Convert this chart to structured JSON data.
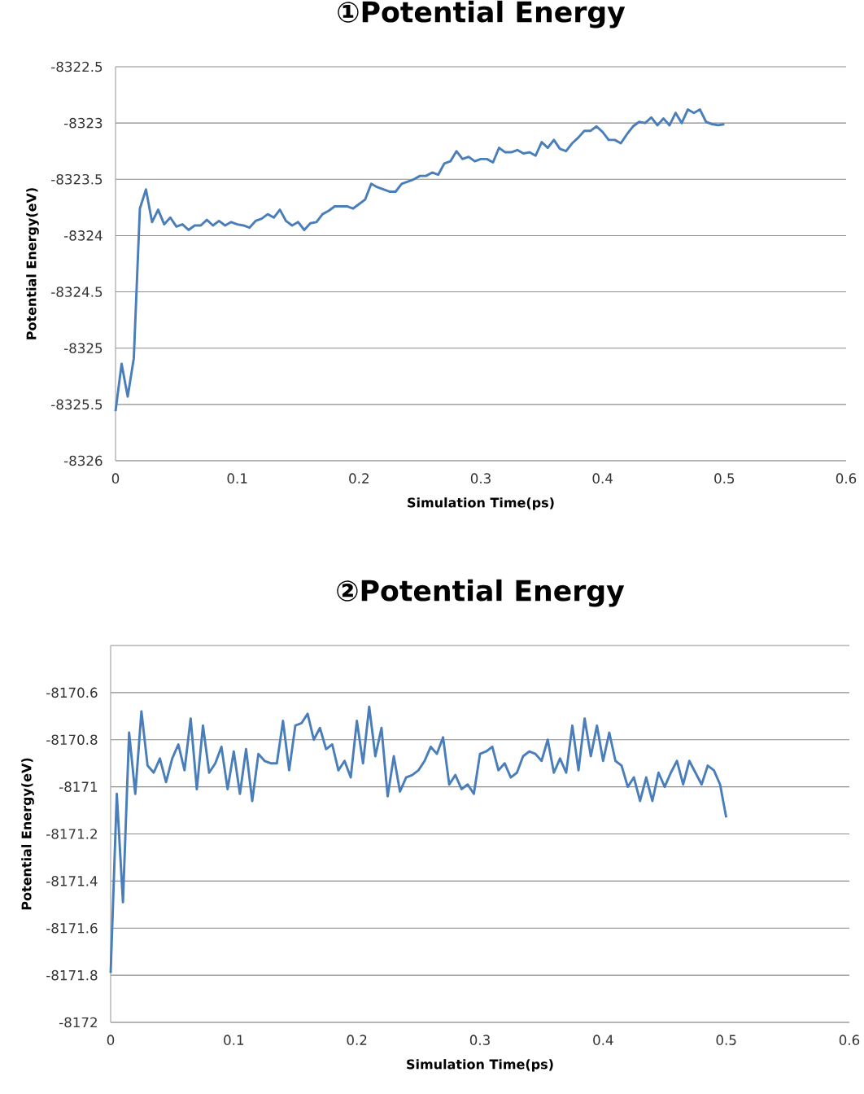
{
  "chart_data": [
    {
      "type": "line",
      "title": "①Potential Energy",
      "xlabel": "Simulation Time(ps)",
      "ylabel": "Potential Energy(eV)",
      "color": "#4a7ebb",
      "grid": "y",
      "xlim": [
        0,
        0.6
      ],
      "ylim": [
        -8326,
        -8322.5
      ],
      "xticks": [
        0,
        0.1,
        0.2,
        0.3,
        0.4,
        0.5,
        0.6
      ],
      "yticks": [
        -8326,
        -8325.5,
        -8325,
        -8324.5,
        -8324,
        -8323.5,
        -8323,
        -8322.5
      ],
      "x": [
        0,
        0.005,
        0.01,
        0.015,
        0.02,
        0.025,
        0.03,
        0.035,
        0.04,
        0.045,
        0.05,
        0.055,
        0.06,
        0.065,
        0.07,
        0.075,
        0.08,
        0.085,
        0.09,
        0.095,
        0.1,
        0.105,
        0.11,
        0.115,
        0.12,
        0.125,
        0.13,
        0.135,
        0.14,
        0.145,
        0.15,
        0.155,
        0.16,
        0.165,
        0.17,
        0.175,
        0.18,
        0.185,
        0.19,
        0.195,
        0.2,
        0.205,
        0.21,
        0.215,
        0.22,
        0.225,
        0.23,
        0.235,
        0.24,
        0.245,
        0.25,
        0.255,
        0.26,
        0.265,
        0.27,
        0.275,
        0.28,
        0.285,
        0.29,
        0.295,
        0.3,
        0.305,
        0.31,
        0.315,
        0.32,
        0.325,
        0.33,
        0.335,
        0.34,
        0.345,
        0.35,
        0.355,
        0.36,
        0.365,
        0.37,
        0.375,
        0.38,
        0.385,
        0.39,
        0.395,
        0.4,
        0.405,
        0.41,
        0.415,
        0.42,
        0.425,
        0.43,
        0.435,
        0.44,
        0.445,
        0.45,
        0.455,
        0.46,
        0.465,
        0.47,
        0.475,
        0.48,
        0.485,
        0.49,
        0.495,
        0.5
      ],
      "values": [
        -8325.56,
        -8325.14,
        -8325.43,
        -8325.09,
        -8323.76,
        -8323.59,
        -8323.88,
        -8323.77,
        -8323.9,
        -8323.84,
        -8323.92,
        -8323.9,
        -8323.95,
        -8323.91,
        -8323.91,
        -8323.86,
        -8323.91,
        -8323.87,
        -8323.91,
        -8323.88,
        -8323.9,
        -8323.91,
        -8323.93,
        -8323.87,
        -8323.85,
        -8323.81,
        -8323.84,
        -8323.77,
        -8323.87,
        -8323.91,
        -8323.88,
        -8323.95,
        -8323.89,
        -8323.88,
        -8323.81,
        -8323.78,
        -8323.74,
        -8323.74,
        -8323.74,
        -8323.76,
        -8323.72,
        -8323.68,
        -8323.54,
        -8323.57,
        -8323.59,
        -8323.61,
        -8323.61,
        -8323.54,
        -8323.52,
        -8323.5,
        -8323.47,
        -8323.47,
        -8323.44,
        -8323.46,
        -8323.36,
        -8323.34,
        -8323.25,
        -8323.32,
        -8323.3,
        -8323.34,
        -8323.32,
        -8323.32,
        -8323.35,
        -8323.22,
        -8323.26,
        -8323.26,
        -8323.24,
        -8323.27,
        -8323.26,
        -8323.29,
        -8323.17,
        -8323.22,
        -8323.15,
        -8323.23,
        -8323.25,
        -8323.18,
        -8323.13,
        -8323.07,
        -8323.07,
        -8323.03,
        -8323.08,
        -8323.15,
        -8323.15,
        -8323.18,
        -8323.1,
        -8323.03,
        -8322.99,
        -8323.0,
        -8322.95,
        -8323.02,
        -8322.96,
        -8323.02,
        -8322.91,
        -8323.0,
        -8322.88,
        -8322.91,
        -8322.88,
        -8322.99,
        -8323.01,
        -8323.02,
        -8323.01
      ]
    },
    {
      "type": "line",
      "title": "②Potential Energy",
      "xlabel": "Simulation Time(ps)",
      "ylabel": "Potential Energy(eV)",
      "color": "#4a7ebb",
      "grid": "y",
      "xlim": [
        0,
        0.6
      ],
      "ylim": [
        -8172,
        -8170.4
      ],
      "xticks": [
        0,
        0.1,
        0.2,
        0.3,
        0.4,
        0.5,
        0.6
      ],
      "yticks": [
        -8172,
        -8171.8,
        -8171.6,
        -8171.4,
        -8171.2,
        -8171,
        -8170.8,
        -8170.6,
        {
          "value": -8170.4,
          "label": null
        }
      ],
      "x": [
        0,
        0.005,
        0.01,
        0.015,
        0.02,
        0.025,
        0.03,
        0.035,
        0.04,
        0.045,
        0.05,
        0.055,
        0.06,
        0.065,
        0.07,
        0.075,
        0.08,
        0.085,
        0.09,
        0.095,
        0.1,
        0.105,
        0.11,
        0.115,
        0.12,
        0.125,
        0.13,
        0.135,
        0.14,
        0.145,
        0.15,
        0.155,
        0.16,
        0.165,
        0.17,
        0.175,
        0.18,
        0.185,
        0.19,
        0.195,
        0.2,
        0.205,
        0.21,
        0.215,
        0.22,
        0.225,
        0.23,
        0.235,
        0.24,
        0.245,
        0.25,
        0.255,
        0.26,
        0.265,
        0.27,
        0.275,
        0.28,
        0.285,
        0.29,
        0.295,
        0.3,
        0.305,
        0.31,
        0.315,
        0.32,
        0.325,
        0.33,
        0.335,
        0.34,
        0.345,
        0.35,
        0.355,
        0.36,
        0.365,
        0.37,
        0.375,
        0.38,
        0.385,
        0.39,
        0.395,
        0.4,
        0.405,
        0.41,
        0.415,
        0.42,
        0.425,
        0.43,
        0.435,
        0.44,
        0.445,
        0.45,
        0.455,
        0.46,
        0.465,
        0.47,
        0.475,
        0.48,
        0.485,
        0.49,
        0.495,
        0.5
      ],
      "values": [
        -8171.79,
        -8171.03,
        -8171.49,
        -8170.77,
        -8171.03,
        -8170.68,
        -8170.91,
        -8170.94,
        -8170.88,
        -8170.98,
        -8170.88,
        -8170.82,
        -8170.93,
        -8170.71,
        -8171.01,
        -8170.74,
        -8170.94,
        -8170.9,
        -8170.83,
        -8171.01,
        -8170.85,
        -8171.03,
        -8170.84,
        -8171.06,
        -8170.86,
        -8170.89,
        -8170.9,
        -8170.9,
        -8170.72,
        -8170.93,
        -8170.74,
        -8170.73,
        -8170.69,
        -8170.8,
        -8170.75,
        -8170.84,
        -8170.82,
        -8170.93,
        -8170.89,
        -8170.96,
        -8170.72,
        -8170.9,
        -8170.66,
        -8170.87,
        -8170.75,
        -8171.04,
        -8170.87,
        -8171.02,
        -8170.96,
        -8170.95,
        -8170.93,
        -8170.89,
        -8170.83,
        -8170.86,
        -8170.79,
        -8170.99,
        -8170.95,
        -8171.01,
        -8170.99,
        -8171.03,
        -8170.86,
        -8170.85,
        -8170.83,
        -8170.93,
        -8170.9,
        -8170.96,
        -8170.94,
        -8170.87,
        -8170.85,
        -8170.86,
        -8170.89,
        -8170.8,
        -8170.94,
        -8170.88,
        -8170.94,
        -8170.74,
        -8170.93,
        -8170.71,
        -8170.87,
        -8170.74,
        -8170.89,
        -8170.77,
        -8170.89,
        -8170.91,
        -8171.0,
        -8170.96,
        -8171.06,
        -8170.96,
        -8171.06,
        -8170.94,
        -8171.0,
        -8170.94,
        -8170.89,
        -8170.99,
        -8170.89,
        -8170.94,
        -8170.99,
        -8170.91,
        -8170.93,
        -8170.99,
        -8171.13
      ]
    }
  ]
}
